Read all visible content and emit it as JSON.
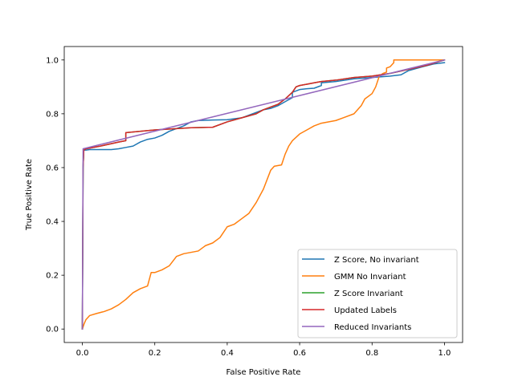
{
  "chart_data": {
    "type": "line",
    "xlabel": "False Positive Rate",
    "ylabel": "True Positive Rate",
    "xlim": [
      -0.05,
      1.05
    ],
    "ylim": [
      -0.05,
      1.05
    ],
    "xticks": [
      "0.0",
      "0.2",
      "0.4",
      "0.6",
      "0.8",
      "1.0"
    ],
    "yticks": [
      "0.0",
      "0.2",
      "0.4",
      "0.6",
      "0.8",
      "1.0"
    ],
    "grid": false,
    "legend_position": "lower-right",
    "series": [
      {
        "name": "Z Score, No invariant",
        "color": "#1f77b4",
        "x": [
          0,
          0.002,
          0.004,
          0.01,
          0.02,
          0.05,
          0.08,
          0.1,
          0.12,
          0.14,
          0.16,
          0.18,
          0.2,
          0.22,
          0.24,
          0.26,
          0.28,
          0.3,
          0.32,
          0.36,
          0.4,
          0.44,
          0.46,
          0.48,
          0.5,
          0.52,
          0.54,
          0.56,
          0.58,
          0.58,
          0.6,
          0.62,
          0.64,
          0.66,
          0.66,
          0.7,
          0.75,
          0.8,
          0.85,
          0.88,
          0.9,
          0.94,
          0.97,
          1.0
        ],
        "y": [
          0,
          0.6,
          0.665,
          0.665,
          0.667,
          0.667,
          0.667,
          0.67,
          0.675,
          0.68,
          0.695,
          0.705,
          0.71,
          0.72,
          0.735,
          0.745,
          0.755,
          0.77,
          0.775,
          0.777,
          0.778,
          0.785,
          0.795,
          0.805,
          0.815,
          0.82,
          0.83,
          0.845,
          0.86,
          0.88,
          0.89,
          0.893,
          0.895,
          0.905,
          0.915,
          0.92,
          0.93,
          0.935,
          0.94,
          0.945,
          0.96,
          0.975,
          0.985,
          0.99
        ]
      },
      {
        "name": "GMM No Invariant",
        "color": "#ff7f0e",
        "x": [
          0,
          0.005,
          0.01,
          0.02,
          0.04,
          0.06,
          0.08,
          0.1,
          0.12,
          0.14,
          0.16,
          0.18,
          0.19,
          0.2,
          0.22,
          0.24,
          0.26,
          0.28,
          0.32,
          0.34,
          0.36,
          0.38,
          0.4,
          0.42,
          0.44,
          0.46,
          0.48,
          0.5,
          0.52,
          0.53,
          0.55,
          0.56,
          0.57,
          0.58,
          0.6,
          0.62,
          0.64,
          0.66,
          0.7,
          0.72,
          0.75,
          0.77,
          0.78,
          0.8,
          0.81,
          0.82,
          0.83,
          0.84,
          0.84,
          0.85,
          0.86,
          0.86,
          0.9,
          0.95,
          1.0
        ],
        "y": [
          0,
          0.02,
          0.035,
          0.05,
          0.058,
          0.065,
          0.075,
          0.09,
          0.11,
          0.135,
          0.15,
          0.16,
          0.21,
          0.21,
          0.22,
          0.235,
          0.27,
          0.28,
          0.29,
          0.31,
          0.32,
          0.34,
          0.38,
          0.39,
          0.41,
          0.43,
          0.47,
          0.52,
          0.59,
          0.605,
          0.61,
          0.65,
          0.68,
          0.7,
          0.725,
          0.74,
          0.755,
          0.765,
          0.775,
          0.785,
          0.8,
          0.83,
          0.855,
          0.875,
          0.9,
          0.94,
          0.95,
          0.955,
          0.97,
          0.975,
          0.99,
          1.0,
          1.0,
          1.0,
          1.0
        ]
      },
      {
        "name": "Z Score Invariant",
        "color": "#2ca02c",
        "x": [
          0,
          0.002,
          0.004,
          0.01,
          0.05,
          0.1,
          0.12,
          0.12,
          0.2,
          0.3,
          0.36,
          0.4,
          0.44,
          0.48,
          0.5,
          0.52,
          0.54,
          0.56,
          0.58,
          0.59,
          0.6,
          0.62,
          0.64,
          0.66,
          0.7,
          0.75,
          0.8,
          0.85,
          0.9,
          0.95,
          1.0
        ],
        "y": [
          0,
          0.6,
          0.665,
          0.67,
          0.68,
          0.695,
          0.7,
          0.73,
          0.74,
          0.748,
          0.75,
          0.77,
          0.785,
          0.8,
          0.815,
          0.825,
          0.835,
          0.855,
          0.88,
          0.9,
          0.905,
          0.91,
          0.915,
          0.92,
          0.925,
          0.935,
          0.94,
          0.95,
          0.965,
          0.98,
          1.0
        ]
      },
      {
        "name": "Updated Labels",
        "color": "#d62728",
        "x": [
          0,
          0.002,
          0.004,
          0.01,
          0.05,
          0.1,
          0.12,
          0.12,
          0.2,
          0.3,
          0.36,
          0.4,
          0.44,
          0.48,
          0.5,
          0.52,
          0.54,
          0.56,
          0.58,
          0.59,
          0.6,
          0.62,
          0.64,
          0.66,
          0.7,
          0.75,
          0.8,
          0.85,
          0.9,
          0.95,
          1.0
        ],
        "y": [
          0,
          0.6,
          0.665,
          0.67,
          0.68,
          0.695,
          0.7,
          0.73,
          0.74,
          0.748,
          0.75,
          0.77,
          0.785,
          0.8,
          0.815,
          0.825,
          0.835,
          0.855,
          0.88,
          0.9,
          0.905,
          0.91,
          0.915,
          0.92,
          0.925,
          0.935,
          0.94,
          0.95,
          0.965,
          0.98,
          1.0
        ]
      },
      {
        "name": "Reduced Invariants",
        "color": "#9467bd",
        "x": [
          0,
          0.002,
          1.0
        ],
        "y": [
          0,
          0.67,
          1.0
        ]
      }
    ]
  }
}
